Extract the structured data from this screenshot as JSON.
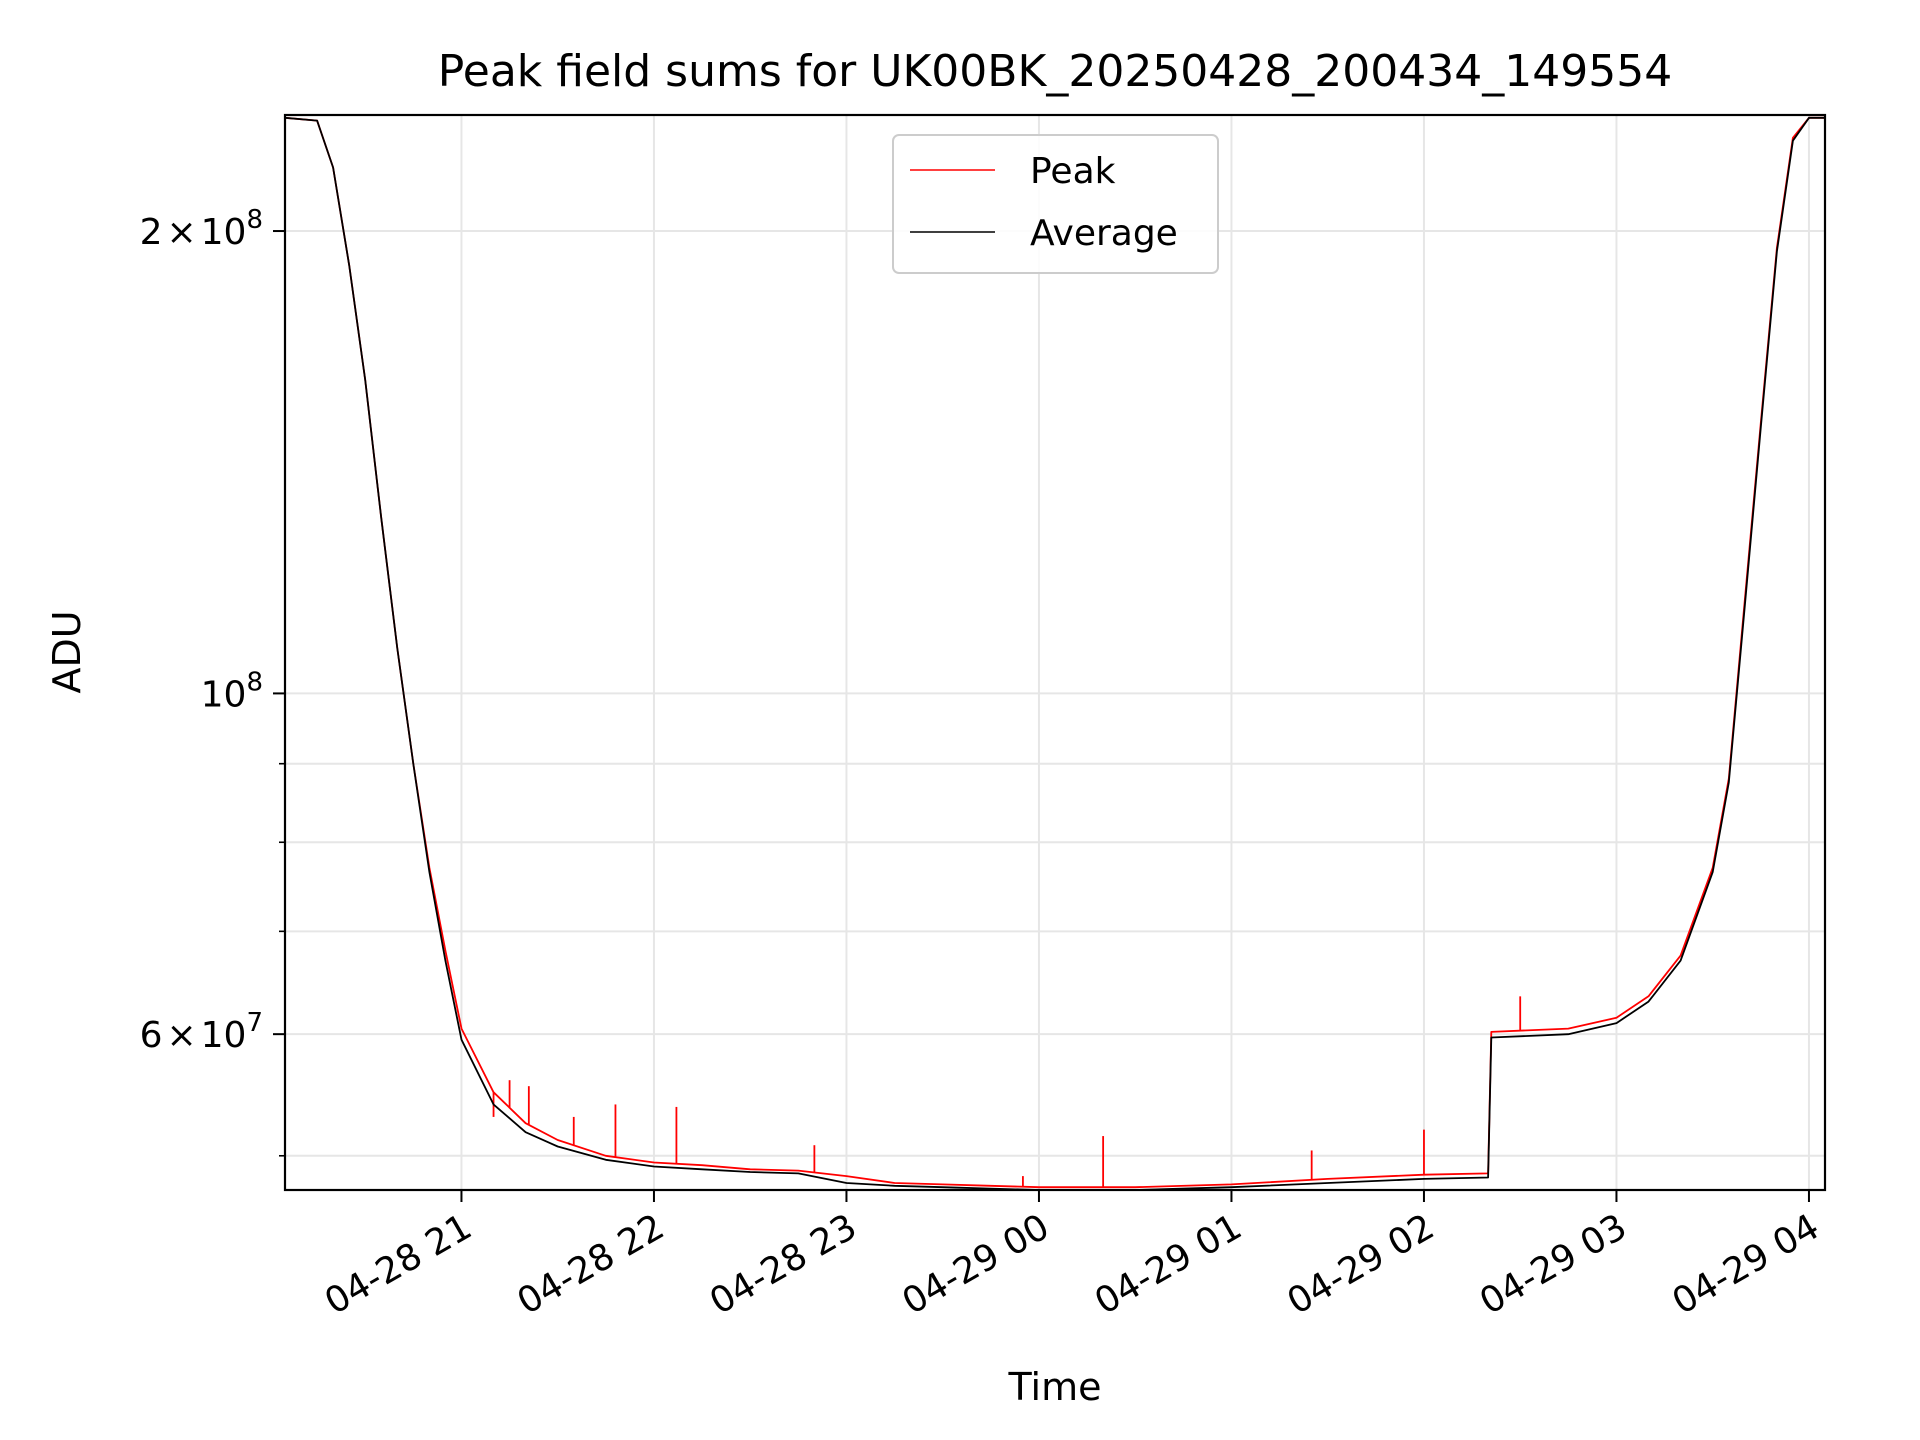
{
  "chart_data": {
    "type": "line",
    "title": "Peak field sums for UK00BK_20250428_200434_149554",
    "xlabel": "Time",
    "ylabel": "ADU",
    "y_scale": "log",
    "grid": true,
    "legend_placement": "top-center",
    "xlim": [
      "2025-04-28 20:05",
      "2025-04-29 04:05"
    ],
    "ylim": [
      47500000,
      238000000
    ],
    "x_ticks": [
      {
        "value": "2025-04-28 21:00",
        "label": "04-28 21"
      },
      {
        "value": "2025-04-28 22:00",
        "label": "04-28 22"
      },
      {
        "value": "2025-04-28 23:00",
        "label": "04-28 23"
      },
      {
        "value": "2025-04-29 00:00",
        "label": "04-29 00"
      },
      {
        "value": "2025-04-29 01:00",
        "label": "04-29 01"
      },
      {
        "value": "2025-04-29 02:00",
        "label": "04-29 02"
      },
      {
        "value": "2025-04-29 03:00",
        "label": "04-29 03"
      },
      {
        "value": "2025-04-29 04:00",
        "label": "04-29 04"
      }
    ],
    "y_ticks_major": [
      {
        "value": 200000000,
        "mantissa": "2",
        "times": "×",
        "base": "10",
        "exp": "8"
      },
      {
        "value": 100000000,
        "mantissa": "",
        "times": "",
        "base": "10",
        "exp": "8"
      },
      {
        "value": 60000000,
        "mantissa": "6",
        "times": "×",
        "base": "10",
        "exp": "7"
      }
    ],
    "y_ticks_minor": [
      50000000,
      70000000,
      80000000,
      90000000
    ],
    "series": [
      {
        "name": "Peak",
        "color": "#ff0000",
        "spikes": [
          [
            "2025-04-28 21:10",
            53000000
          ],
          [
            "2025-04-28 21:15",
            56000000
          ],
          [
            "2025-04-28 21:21",
            55500000
          ],
          [
            "2025-04-28 21:35",
            53000000
          ],
          [
            "2025-04-28 21:48",
            54000000
          ],
          [
            "2025-04-28 22:07",
            53800000
          ],
          [
            "2025-04-28 22:50",
            50800000
          ],
          [
            "2025-04-28 23:55",
            48500000
          ],
          [
            "2025-04-29 00:20",
            51500000
          ],
          [
            "2025-04-29 01:25",
            50400000
          ],
          [
            "2025-04-29 02:00",
            52000000
          ],
          [
            "2025-04-29 02:30",
            63500000
          ]
        ],
        "points": [
          [
            "2025-04-28 20:05",
            237000000
          ],
          [
            "2025-04-28 20:15",
            236000000
          ],
          [
            "2025-04-28 20:20",
            220000000
          ],
          [
            "2025-04-28 20:25",
            190000000
          ],
          [
            "2025-04-28 20:30",
            160000000
          ],
          [
            "2025-04-28 20:35",
            130000000
          ],
          [
            "2025-04-28 20:40",
            107000000
          ],
          [
            "2025-04-28 20:45",
            90000000
          ],
          [
            "2025-04-28 20:50",
            77000000
          ],
          [
            "2025-04-28 20:55",
            68000000
          ],
          [
            "2025-04-28 21:00",
            60500000
          ],
          [
            "2025-04-28 21:10",
            55000000
          ],
          [
            "2025-04-28 21:20",
            52500000
          ],
          [
            "2025-04-28 21:30",
            51200000
          ],
          [
            "2025-04-28 21:45",
            50000000
          ],
          [
            "2025-04-28 22:00",
            49500000
          ],
          [
            "2025-04-28 22:15",
            49300000
          ],
          [
            "2025-04-28 22:30",
            49000000
          ],
          [
            "2025-04-28 22:45",
            48900000
          ],
          [
            "2025-04-28 23:00",
            48500000
          ],
          [
            "2025-04-28 23:15",
            48000000
          ],
          [
            "2025-04-28 23:30",
            47900000
          ],
          [
            "2025-04-28 23:45",
            47800000
          ],
          [
            "2025-04-29 00:00",
            47700000
          ],
          [
            "2025-04-29 00:30",
            47700000
          ],
          [
            "2025-04-29 01:00",
            47900000
          ],
          [
            "2025-04-29 01:30",
            48300000
          ],
          [
            "2025-04-29 02:00",
            48600000
          ],
          [
            "2025-04-29 02:20",
            48700000
          ],
          [
            "2025-04-29 02:21",
            60200000
          ],
          [
            "2025-04-29 02:45",
            60500000
          ],
          [
            "2025-04-29 03:00",
            61500000
          ],
          [
            "2025-04-29 03:10",
            63500000
          ],
          [
            "2025-04-29 03:20",
            67500000
          ],
          [
            "2025-04-29 03:30",
            77000000
          ],
          [
            "2025-04-29 03:35",
            88000000
          ],
          [
            "2025-04-29 03:40",
            115000000
          ],
          [
            "2025-04-29 03:45",
            150000000
          ],
          [
            "2025-04-29 03:50",
            195000000
          ],
          [
            "2025-04-29 03:55",
            230000000
          ],
          [
            "2025-04-29 04:00",
            237000000
          ],
          [
            "2025-04-29 04:05",
            237000000
          ]
        ]
      },
      {
        "name": "Average",
        "color": "#000000",
        "points": [
          [
            "2025-04-28 20:05",
            237000000
          ],
          [
            "2025-04-28 20:15",
            236000000
          ],
          [
            "2025-04-28 20:20",
            220000000
          ],
          [
            "2025-04-28 20:25",
            190000000
          ],
          [
            "2025-04-28 20:30",
            160000000
          ],
          [
            "2025-04-28 20:35",
            130000000
          ],
          [
            "2025-04-28 20:40",
            107000000
          ],
          [
            "2025-04-28 20:45",
            90000000
          ],
          [
            "2025-04-28 20:50",
            76500000
          ],
          [
            "2025-04-28 20:55",
            67000000
          ],
          [
            "2025-04-28 21:00",
            59500000
          ],
          [
            "2025-04-28 21:10",
            54000000
          ],
          [
            "2025-04-28 21:20",
            51800000
          ],
          [
            "2025-04-28 21:30",
            50700000
          ],
          [
            "2025-04-28 21:45",
            49700000
          ],
          [
            "2025-04-28 22:00",
            49200000
          ],
          [
            "2025-04-28 22:15",
            49000000
          ],
          [
            "2025-04-28 22:30",
            48800000
          ],
          [
            "2025-04-28 22:45",
            48700000
          ],
          [
            "2025-04-28 23:00",
            48000000
          ],
          [
            "2025-04-28 23:15",
            47800000
          ],
          [
            "2025-04-28 23:30",
            47700000
          ],
          [
            "2025-04-28 23:45",
            47600000
          ],
          [
            "2025-04-29 00:00",
            47500000
          ],
          [
            "2025-04-29 00:30",
            47500000
          ],
          [
            "2025-04-29 01:00",
            47700000
          ],
          [
            "2025-04-29 01:30",
            48000000
          ],
          [
            "2025-04-29 02:00",
            48300000
          ],
          [
            "2025-04-29 02:20",
            48400000
          ],
          [
            "2025-04-29 02:21",
            59700000
          ],
          [
            "2025-04-29 02:45",
            60000000
          ],
          [
            "2025-04-29 03:00",
            61000000
          ],
          [
            "2025-04-29 03:10",
            63000000
          ],
          [
            "2025-04-29 03:20",
            67000000
          ],
          [
            "2025-04-29 03:30",
            76500000
          ],
          [
            "2025-04-29 03:35",
            87500000
          ],
          [
            "2025-04-29 03:40",
            114000000
          ],
          [
            "2025-04-29 03:45",
            149000000
          ],
          [
            "2025-04-29 03:50",
            194000000
          ],
          [
            "2025-04-29 03:55",
            229000000
          ],
          [
            "2025-04-29 04:00",
            237000000
          ],
          [
            "2025-04-29 04:05",
            237000000
          ]
        ]
      }
    ]
  }
}
